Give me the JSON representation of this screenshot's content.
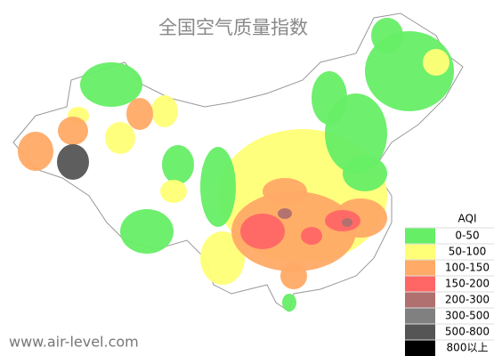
{
  "title": "全国空气质量指数",
  "legend": {
    "title": "AQI",
    "items": [
      {
        "label": "0-50",
        "color": "#66ee66"
      },
      {
        "label": "50-100",
        "color": "#ffff77"
      },
      {
        "label": "100-150",
        "color": "#ffaa66"
      },
      {
        "label": "150-200",
        "color": "#ff6666"
      },
      {
        "label": "200-300",
        "color": "#b07070"
      },
      {
        "label": "300-500",
        "color": "#808080"
      },
      {
        "label": "500-800",
        "color": "#555555"
      },
      {
        "label": "800以上",
        "color": "#000000"
      }
    ]
  },
  "watermark": "www.air-level.com"
}
